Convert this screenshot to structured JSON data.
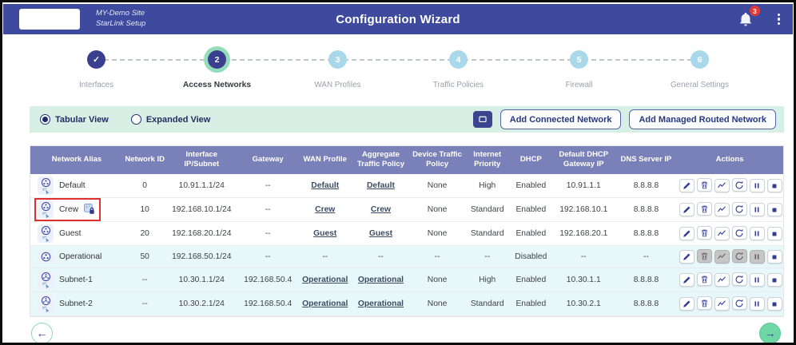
{
  "header": {
    "site_line1": "MY-Demo Site",
    "site_line2": "StarLink Setup",
    "title": "Configuration Wizard",
    "notification_count": "3"
  },
  "stepper": {
    "steps": [
      {
        "number": "1",
        "label": "Interfaces",
        "state": "completed"
      },
      {
        "number": "2",
        "label": "Access Networks",
        "state": "active"
      },
      {
        "number": "3",
        "label": "WAN Profiles",
        "state": "upcoming"
      },
      {
        "number": "4",
        "label": "Traffic Policies",
        "state": "upcoming"
      },
      {
        "number": "5",
        "label": "Firewall",
        "state": "upcoming"
      },
      {
        "number": "6",
        "label": "General Settings",
        "state": "upcoming"
      }
    ]
  },
  "toolbar": {
    "view_options": [
      {
        "label": "Tabular View",
        "selected": true
      },
      {
        "label": "Expanded View",
        "selected": false
      }
    ],
    "buttons": [
      {
        "label": "Add Connected Network"
      },
      {
        "label": "Add Managed Routed Network"
      }
    ]
  },
  "table": {
    "columns": [
      "Network Alias",
      "Network ID",
      "Interface IP/Subnet",
      "Gateway",
      "WAN Profile",
      "Aggregate Traffic Policy",
      "Device Traffic Policy",
      "Internet Priority",
      "DHCP",
      "Default DHCP Gateway IP",
      "DNS Server IP",
      "Actions"
    ],
    "actions": [
      {
        "name": "edit"
      },
      {
        "name": "delete"
      },
      {
        "name": "statistics"
      },
      {
        "name": "restart"
      },
      {
        "name": "pause"
      },
      {
        "name": "stop"
      }
    ],
    "rows": [
      {
        "alias": "Default",
        "icon": "access-network-icon",
        "lock": false,
        "highlighted": false,
        "tinted": false,
        "network_id": "0",
        "interface_ip": "10.91.1.1/24",
        "gateway": "--",
        "wan_profile": "Default",
        "aggregate_traffic_policy": "Default",
        "device_traffic_policy": "None",
        "internet_priority": "High",
        "dhcp": "Enabled",
        "default_dhcp_gateway_ip": "10.91.1.1",
        "dns_server_ip": "8.8.8.8",
        "disabled_actions": []
      },
      {
        "alias": "Crew",
        "icon": "access-network-icon",
        "lock": true,
        "highlighted": true,
        "tinted": false,
        "network_id": "10",
        "interface_ip": "192.168.10.1/24",
        "gateway": "--",
        "wan_profile": "Crew",
        "aggregate_traffic_policy": "Crew",
        "device_traffic_policy": "None",
        "internet_priority": "Standard",
        "dhcp": "Enabled",
        "default_dhcp_gateway_ip": "192.168.10.1",
        "dns_server_ip": "8.8.8.8",
        "disabled_actions": []
      },
      {
        "alias": "Guest",
        "icon": "access-network-icon",
        "lock": false,
        "highlighted": false,
        "tinted": false,
        "network_id": "20",
        "interface_ip": "192.168.20.1/24",
        "gateway": "--",
        "wan_profile": "Guest",
        "aggregate_traffic_policy": "Guest",
        "device_traffic_policy": "None",
        "internet_priority": "Standard",
        "dhcp": "Enabled",
        "default_dhcp_gateway_ip": "192.168.20.1",
        "dns_server_ip": "8.8.8.8",
        "disabled_actions": []
      },
      {
        "alias": "Operational",
        "icon": "network-icon",
        "lock": false,
        "highlighted": false,
        "tinted": true,
        "network_id": "50",
        "interface_ip": "192.168.50.1/24",
        "gateway": "--",
        "wan_profile": "--",
        "aggregate_traffic_policy": "--",
        "device_traffic_policy": "--",
        "internet_priority": "--",
        "dhcp": "Disabled",
        "default_dhcp_gateway_ip": "--",
        "dns_server_ip": "--",
        "disabled_actions": [
          "delete",
          "statistics",
          "restart",
          "pause"
        ]
      },
      {
        "alias": "Subnet-1",
        "icon": "subnet-icon",
        "lock": false,
        "highlighted": false,
        "tinted": true,
        "network_id": "--",
        "interface_ip": "10.30.1.1/24",
        "gateway": "192.168.50.4",
        "wan_profile": "Operational",
        "aggregate_traffic_policy": "Operational",
        "device_traffic_policy": "None",
        "internet_priority": "High",
        "dhcp": "Enabled",
        "default_dhcp_gateway_ip": "10.30.1.1",
        "dns_server_ip": "8.8.8.8",
        "disabled_actions": []
      },
      {
        "alias": "Subnet-2",
        "icon": "subnet-icon",
        "lock": false,
        "highlighted": false,
        "tinted": true,
        "network_id": "--",
        "interface_ip": "10.30.2.1/24",
        "gateway": "192.168.50.4",
        "wan_profile": "Operational",
        "aggregate_traffic_policy": "Operational",
        "device_traffic_policy": "None",
        "internet_priority": "Standard",
        "dhcp": "Enabled",
        "default_dhcp_gateway_ip": "10.30.2.1",
        "dns_server_ip": "8.8.8.8",
        "disabled_actions": []
      }
    ]
  },
  "footer": {
    "prev": "←",
    "next": "→"
  },
  "colors": {
    "header_bg": "#3d4a9d",
    "table_header_bg": "#7a80b8",
    "toolbar_bg": "#d8efe5",
    "active_step_ring": "#95dcba",
    "upcoming_step": "#a9d8ea",
    "badge_red": "#e23b35",
    "highlight_red": "#e12f2f",
    "next_button_green": "#6fd6a6"
  }
}
